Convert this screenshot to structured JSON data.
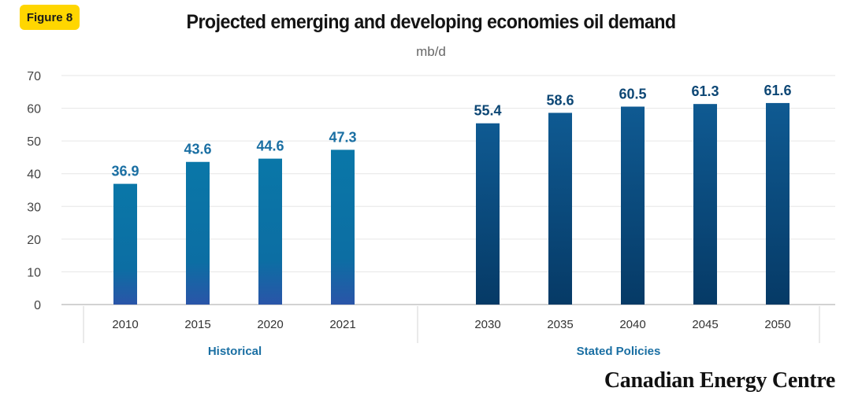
{
  "badge": "Figure 8",
  "brand": "Canadian Energy Centre",
  "chart_data": {
    "type": "bar",
    "title": "Projected emerging and developing economies oil demand",
    "subtitle": "mb/d",
    "ylim": [
      0,
      70
    ],
    "yticks": [
      0,
      10,
      20,
      30,
      40,
      50,
      60,
      70
    ],
    "grid": true,
    "groups": [
      {
        "name": "Historical",
        "color": "#2a7ab0",
        "categories": [
          "2010",
          "2015",
          "2020",
          "2021"
        ],
        "values": [
          36.9,
          43.6,
          44.6,
          47.3
        ]
      },
      {
        "name": "Stated Policies",
        "color": "#0e4f80",
        "categories": [
          "2030",
          "2035",
          "2040",
          "2045",
          "2050"
        ],
        "values": [
          55.4,
          58.6,
          60.5,
          61.3,
          61.6
        ]
      }
    ]
  }
}
